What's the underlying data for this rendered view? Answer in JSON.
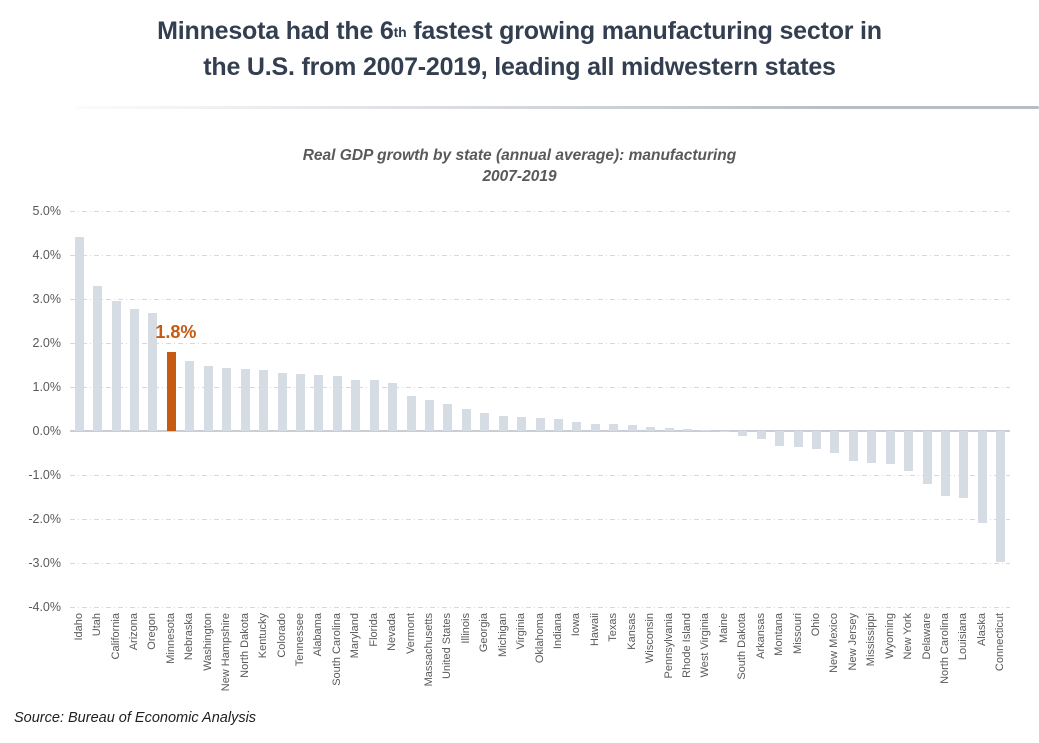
{
  "title": {
    "line1_pre": "Minnesota had the 6",
    "line1_sup": "th",
    "line1_post": " fastest growing manufacturing sector in",
    "line2": "the U.S. from 2007-2019, leading all midwestern states"
  },
  "subtitle": {
    "line1": "Real GDP growth by state (annual average): manufacturing",
    "line2": "2007-2019"
  },
  "source_note": "Source: Bureau of Economic Analysis",
  "colors": {
    "title": "#333f50",
    "subtitle": "#595959",
    "axis_labels": "#595959",
    "gridline": "#d8d8da",
    "zero_axis": "#c9ced6"
  },
  "chart_data": {
    "type": "bar",
    "title": "Real GDP growth by state (annual average): manufacturing 2007-2019",
    "xlabel": "",
    "ylabel": "",
    "unit": "percent",
    "ylim": [
      -4.0,
      5.0
    ],
    "ytick_step": 1.0,
    "yticks": [
      "5.0%",
      "4.0%",
      "3.0%",
      "2.0%",
      "1.0%",
      "0.0%",
      "-1.0%",
      "-2.0%",
      "-3.0%",
      "-4.0%"
    ],
    "grid": true,
    "legend": false,
    "bar_color": "#d6dce4",
    "categories": [
      "Idaho",
      "Utah",
      "California",
      "Arizona",
      "Oregon",
      "Minnesota",
      "Nebraska",
      "Washington",
      "New Hampshire",
      "North Dakota",
      "Kentucky",
      "Colorado",
      "Tennessee",
      "Alabama",
      "South Carolina",
      "Maryland",
      "Florida",
      "Nevada",
      "Vermont",
      "Massachusetts",
      "United States",
      "Illinois",
      "Georgia",
      "Michigan",
      "Virginia",
      "Oklahoma",
      "Indiana",
      "Iowa",
      "Hawaii",
      "Texas",
      "Kansas",
      "Wisconsin",
      "Pennsylvania",
      "Rhode Island",
      "West Virginia",
      "Maine",
      "South Dakota",
      "Arkansas",
      "Montana",
      "Missouri",
      "Ohio",
      "New Mexico",
      "New Jersey",
      "Mississippi",
      "Wyoming",
      "New York",
      "Delaware",
      "North Carolina",
      "Louisiana",
      "Alaska",
      "Connecticut"
    ],
    "values": [
      4.4,
      3.3,
      2.95,
      2.77,
      2.68,
      1.8,
      1.6,
      1.47,
      1.43,
      1.4,
      1.38,
      1.33,
      1.3,
      1.27,
      1.25,
      1.17,
      1.15,
      1.1,
      0.8,
      0.7,
      0.62,
      0.5,
      0.42,
      0.35,
      0.31,
      0.3,
      0.28,
      0.21,
      0.17,
      0.15,
      0.14,
      0.09,
      0.06,
      0.05,
      0.03,
      -0.03,
      -0.12,
      -0.17,
      -0.33,
      -0.37,
      -0.4,
      -0.5,
      -0.67,
      -0.72,
      -0.76,
      -0.9,
      -1.2,
      -1.48,
      -1.52,
      -2.1,
      -2.98
    ],
    "highlight": {
      "category": "Minnesota",
      "value": 1.8,
      "label": "1.8%",
      "color": "#c55a11"
    }
  }
}
